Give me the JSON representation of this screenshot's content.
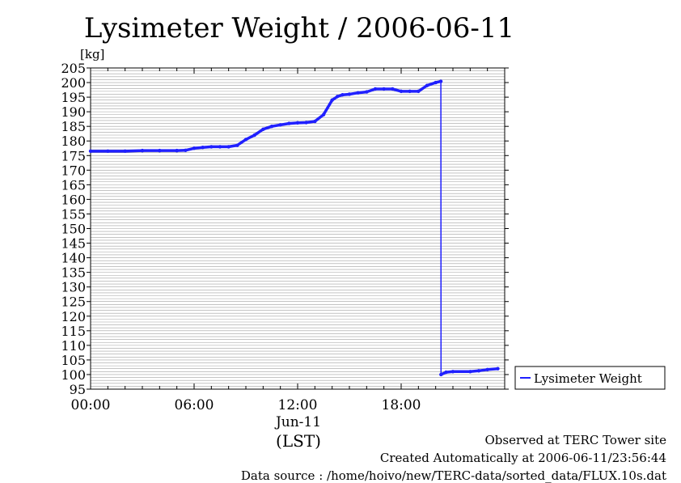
{
  "chart_data": {
    "type": "line",
    "title": "Lysimeter Weight / 2006-06-11",
    "y_unit": "[kg]",
    "ylim": [
      95,
      205
    ],
    "y_ticks": [
      95,
      100,
      105,
      110,
      115,
      120,
      125,
      130,
      135,
      140,
      145,
      150,
      155,
      160,
      165,
      170,
      175,
      180,
      185,
      190,
      195,
      200,
      205
    ],
    "y_tick_labels": [
      "95",
      "100",
      "105",
      "110",
      "115",
      "120",
      "125",
      "130",
      "135",
      "140",
      "145",
      "150",
      "155",
      "160",
      "165",
      "170",
      "175",
      "180",
      "185",
      "190",
      "195",
      "200",
      "205"
    ],
    "x_unit": "hours",
    "xlim": [
      0,
      24
    ],
    "x_ticks": [
      0,
      6,
      12,
      18
    ],
    "x_tick_labels": [
      "00:00",
      "06:00",
      "12:00",
      "18:00"
    ],
    "x_date_label": "Jun-11",
    "xlabel": "(LST)",
    "grid": true,
    "legend": {
      "placement": "right",
      "entries": [
        "Lysimeter Weight"
      ]
    },
    "series": [
      {
        "name": "Lysimeter Weight",
        "color": "#2020ff",
        "x": [
          0.0,
          1.0,
          2.0,
          3.0,
          4.0,
          5.0,
          5.5,
          6.0,
          6.5,
          7.0,
          7.5,
          8.0,
          8.5,
          9.0,
          9.5,
          10.0,
          10.5,
          11.0,
          11.5,
          12.0,
          12.5,
          13.0,
          13.5,
          14.0,
          14.3,
          14.6,
          15.0,
          15.5,
          16.0,
          16.5,
          17.0,
          17.5,
          18.0,
          18.5,
          19.0,
          19.5,
          20.0,
          20.3,
          20.31,
          20.6,
          21.0,
          22.0,
          22.5,
          23.0,
          23.6
        ],
        "y": [
          176.5,
          176.5,
          176.5,
          176.7,
          176.7,
          176.7,
          176.8,
          177.5,
          177.8,
          178.0,
          178.0,
          178.0,
          178.5,
          180.5,
          182.0,
          184.0,
          185.0,
          185.5,
          186.0,
          186.2,
          186.3,
          186.7,
          189.0,
          194.0,
          195.2,
          195.8,
          196.0,
          196.5,
          196.8,
          197.8,
          197.8,
          197.8,
          197.0,
          197.0,
          197.0,
          199.0,
          200.0,
          200.4,
          100.0,
          100.8,
          101.0,
          101.0,
          101.3,
          101.7,
          102.0
        ]
      }
    ]
  },
  "footer": {
    "observed": "Observed at TERC Tower site",
    "created": "Created Automatically at 2006-06-11/23:56:44",
    "source": "Data source : /home/hoivo/new/TERC-data/sorted_data/FLUX.10s.dat"
  }
}
